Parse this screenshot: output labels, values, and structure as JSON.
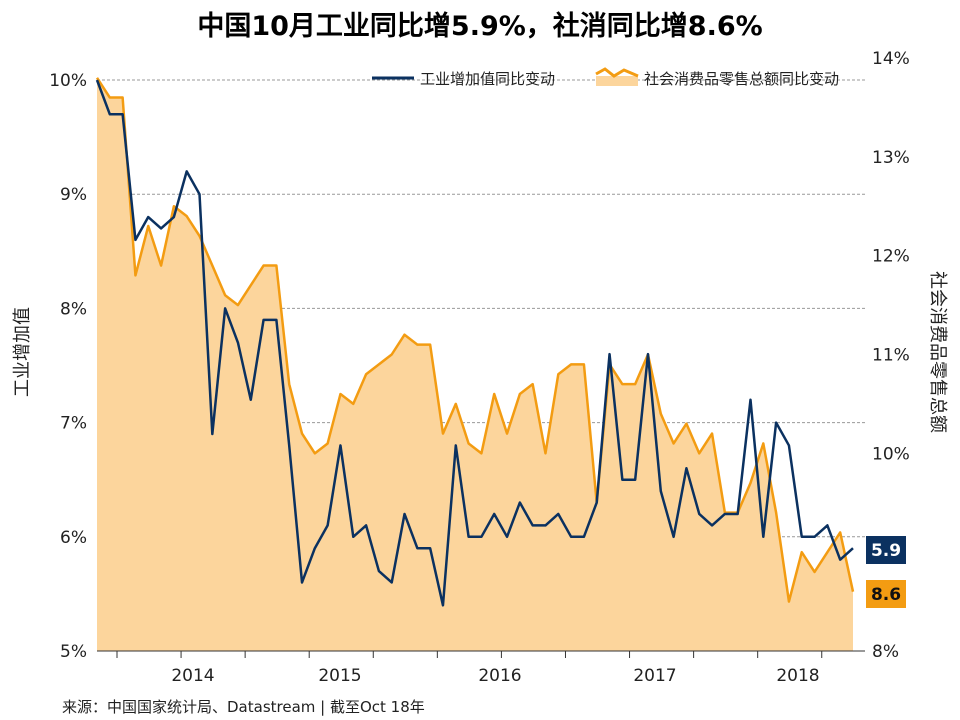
{
  "chart_data": {
    "type": "line",
    "title": "中国10月工业同比增5.9%，社消同比增8.6%",
    "source": "来源：中国国家统计局、Datastream | 截至Oct 18年",
    "x_tick_labels": [
      "2014",
      "2015",
      "2016",
      "2017",
      "2018"
    ],
    "y_left": {
      "label": "工业增加值",
      "ylim": [
        5,
        10
      ],
      "tick_labels": [
        "5%",
        "6%",
        "7%",
        "8%",
        "9%",
        "10%"
      ]
    },
    "y_right": {
      "label": "社会消费品零售总额",
      "ylim": [
        8,
        14
      ],
      "tick_labels": [
        "8%",
        "10%",
        "11%",
        "12%",
        "13%",
        "14%"
      ]
    },
    "legend_position": "top-right",
    "grid": true,
    "series": [
      {
        "name": "工业增加值同比变动",
        "type": "line",
        "axis": "left",
        "color": "#0b3160",
        "last_label": "5.9",
        "values": [
          10.0,
          9.7,
          9.7,
          8.6,
          8.8,
          8.7,
          8.8,
          9.2,
          9.0,
          6.9,
          8.0,
          7.7,
          7.2,
          7.9,
          7.9,
          6.8,
          5.6,
          5.9,
          6.1,
          6.8,
          6.0,
          6.1,
          5.7,
          5.6,
          6.2,
          5.9,
          5.9,
          5.4,
          6.8,
          6.0,
          6.0,
          6.2,
          6.0,
          6.3,
          6.1,
          6.1,
          6.2,
          6.0,
          6.0,
          6.3,
          7.6,
          6.5,
          6.5,
          7.6,
          6.4,
          6.0,
          6.6,
          6.2,
          6.1,
          6.2,
          6.2,
          7.2,
          6.0,
          7.0,
          6.8,
          6.0,
          6.0,
          6.1,
          5.8,
          5.9
        ]
      },
      {
        "name": "社会消费品零售总额同比变动",
        "type": "area",
        "axis": "right",
        "color": "#f39c12",
        "fill": "#fcd59c",
        "last_label": "8.6",
        "values": [
          13.8,
          13.6,
          13.6,
          11.8,
          12.3,
          11.9,
          12.5,
          12.4,
          12.2,
          11.9,
          11.6,
          11.5,
          11.7,
          11.9,
          11.9,
          10.7,
          10.2,
          10.0,
          10.1,
          10.6,
          10.5,
          10.8,
          10.9,
          11.0,
          11.2,
          11.1,
          11.1,
          10.2,
          10.5,
          10.1,
          10.0,
          10.6,
          10.2,
          10.6,
          10.7,
          10.0,
          10.8,
          10.9,
          10.9,
          9.5,
          10.9,
          10.7,
          10.7,
          11.0,
          10.4,
          10.1,
          10.3,
          10.0,
          10.2,
          9.4,
          9.4,
          9.7,
          10.1,
          9.4,
          8.5,
          9.0,
          8.8,
          9.0,
          9.2,
          8.6
        ]
      }
    ]
  }
}
